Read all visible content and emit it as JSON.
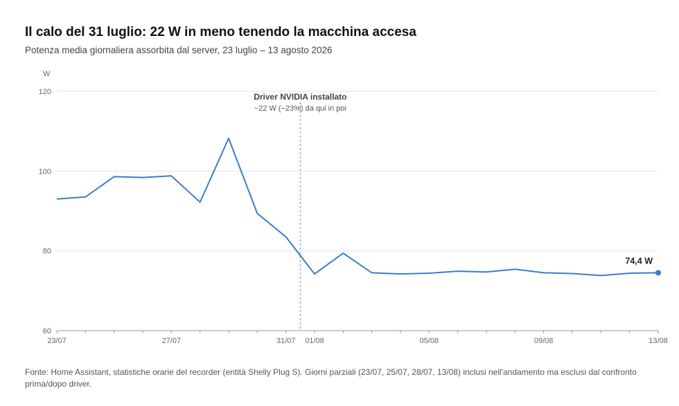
{
  "chart_data": {
    "type": "line",
    "title": "Il calo del 31 luglio: 22 W in meno tenendo la macchina accesa",
    "subtitle": "Potenza media giornaliera assorbita dal server, 23 luglio – 13 agosto 2026",
    "ylabel": "W",
    "ylim": [
      60,
      120
    ],
    "yticks": [
      60,
      80,
      100,
      120
    ],
    "grid": true,
    "x": [
      "23/07",
      "24/07",
      "25/07",
      "26/07",
      "27/07",
      "28/07",
      "29/07",
      "30/07",
      "31/07",
      "01/08",
      "02/08",
      "03/08",
      "04/08",
      "05/08",
      "06/08",
      "07/08",
      "08/08",
      "09/08",
      "10/08",
      "11/08",
      "12/08",
      "13/08"
    ],
    "xtick_labels": [
      "23/07",
      "27/07",
      "31/07",
      "01/08",
      "05/08",
      "09/08",
      "13/08"
    ],
    "series": [
      {
        "values": [
          93.0,
          93.5,
          98.6,
          98.4,
          98.8,
          92.2,
          108.2,
          89.4,
          83.5,
          74.2,
          79.4,
          74.5,
          74.2,
          74.4,
          74.9,
          74.7,
          75.4,
          74.5,
          74.3,
          73.8,
          74.4,
          74.5
        ],
        "color": "#3a7dc9"
      }
    ],
    "annotation": {
      "at_x": "31/07",
      "title": "Driver NVIDIA installato",
      "text": "−22 W (−23%) da qui in poi"
    },
    "end_label": "74,4 W",
    "source": "Fonte: Home Assistant, statistiche orarie del recorder (entità Shelly Plug S). Giorni parziali (23/07, 25/07, 28/07, 13/08) inclusi nell'andamento ma esclusi dal confronto prima/dopo driver."
  }
}
